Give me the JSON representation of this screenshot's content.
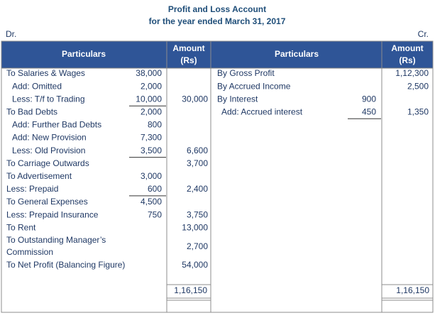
{
  "header": {
    "title": "Profit and Loss Account",
    "subtitle": "for the year ended March 31, 2017",
    "debit": "Dr.",
    "credit": "Cr."
  },
  "columns": {
    "particulars_left": "Particulars",
    "amount_left": "Amount (Rs)",
    "particulars_right": "Particulars",
    "amount_right": "Amount (Rs)"
  },
  "debit": [
    {
      "text": "To Salaries & Wages",
      "inner": "38,000"
    },
    {
      "text": "Add: Omitted",
      "inner": "2,000"
    },
    {
      "text": "Less: T/f to Trading",
      "inner": "10,000",
      "underline": true,
      "amount": "30,000"
    },
    {
      "text": "To Bad Debts",
      "inner": "2,000"
    },
    {
      "text": "Add: Further Bad Debts",
      "inner": "800"
    },
    {
      "text": "Add: New Provision",
      "inner": "7,300"
    },
    {
      "text": "Less: Old Provision",
      "inner": "3,500",
      "underline": true,
      "amount": "6,600"
    },
    {
      "text": "To Carriage Outwards",
      "amount": "3,700"
    },
    {
      "text": "To Advertisement",
      "inner": "3,000"
    },
    {
      "text": "Less: Prepaid",
      "inner": "600",
      "underline": true,
      "amount": "2,400"
    },
    {
      "text": "To General Expenses",
      "inner": "4,500"
    },
    {
      "text": "Less: Prepaid Insurance",
      "inner": "750",
      "amount": "3,750"
    },
    {
      "text": "To Rent",
      "amount": "13,000"
    },
    {
      "text": "To Outstanding Manager’s Commission",
      "amount": "2,700"
    },
    {
      "text": "To Net Profit (Balancing Figure)",
      "amount": "54,000"
    }
  ],
  "credit": [
    {
      "text": "By Gross Profit",
      "amount": "1,12,300"
    },
    {
      "text": "By Accrued Income",
      "amount": "2,500"
    },
    {
      "text": "By Interest",
      "inner": "900"
    },
    {
      "text": "Add: Accrued interest",
      "inner": "450",
      "underline": true,
      "amount": "1,350"
    }
  ],
  "totals": {
    "debit": "1,16,150",
    "credit": "1,16,150"
  }
}
